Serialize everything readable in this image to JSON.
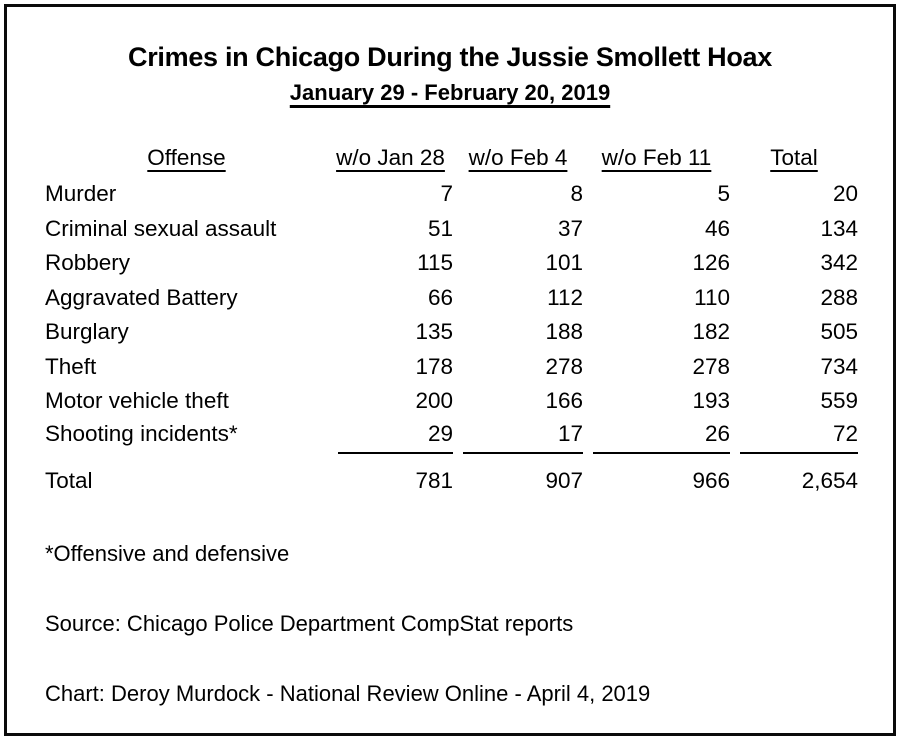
{
  "title": "Crimes in Chicago During the Jussie Smollett Hoax",
  "subtitle": "January 29 - February 20, 2019",
  "table": {
    "headers": [
      "Offense",
      "w/o Jan 28",
      "w/o Feb 4",
      "w/o Feb 11",
      "Total"
    ],
    "rows": [
      {
        "offense": "Murder",
        "values": [
          "7",
          "8",
          "5",
          "20"
        ]
      },
      {
        "offense": "Criminal sexual assault",
        "values": [
          "51",
          "37",
          "46",
          "134"
        ]
      },
      {
        "offense": "Robbery",
        "values": [
          "115",
          "101",
          "126",
          "342"
        ]
      },
      {
        "offense": "Aggravated Battery",
        "values": [
          "66",
          "112",
          "110",
          "288"
        ]
      },
      {
        "offense": "Burglary",
        "values": [
          "135",
          "188",
          "182",
          "505"
        ]
      },
      {
        "offense": "Theft",
        "values": [
          "178",
          "278",
          "278",
          "734"
        ]
      },
      {
        "offense": "Motor vehicle theft",
        "values": [
          "200",
          "166",
          "193",
          "559"
        ]
      },
      {
        "offense": "Shooting incidents*",
        "values": [
          "29",
          "17",
          "26",
          "72"
        ]
      }
    ],
    "total_row": {
      "label": "Total",
      "values": [
        "781",
        "907",
        "966",
        "2,654"
      ]
    }
  },
  "footnote": "*Offensive and defensive",
  "source": "Source: Chicago Police Department CompStat reports",
  "credit": "Chart: Deroy Murdock - National Review Online - April 4, 2019",
  "colors": {
    "text": "#000000",
    "border": "#0a0a0a",
    "background": "#ffffff"
  },
  "chart_data": {
    "type": "table",
    "title": "Crimes in Chicago During the Jussie Smollett Hoax",
    "subtitle": "January 29 - February 20, 2019",
    "categories": [
      "Murder",
      "Criminal sexual assault",
      "Robbery",
      "Aggravated Battery",
      "Burglary",
      "Theft",
      "Motor vehicle theft",
      "Shooting incidents*"
    ],
    "series": [
      {
        "name": "w/o Jan 28",
        "values": [
          7,
          51,
          115,
          66,
          135,
          178,
          200,
          29
        ]
      },
      {
        "name": "w/o Feb 4",
        "values": [
          8,
          37,
          101,
          112,
          188,
          278,
          166,
          17
        ]
      },
      {
        "name": "w/o Feb 11",
        "values": [
          5,
          46,
          126,
          110,
          182,
          278,
          193,
          26
        ]
      }
    ],
    "row_totals": [
      20,
      134,
      342,
      288,
      505,
      734,
      559,
      72
    ],
    "column_totals": [
      781,
      907,
      966
    ],
    "grand_total": 2654,
    "footnote": "*Offensive and defensive",
    "source": "Source: Chicago Police Department CompStat reports",
    "credit": "Chart: Deroy Murdock - National Review Online - April 4, 2019",
    "layout_hints": {
      "grid": false,
      "legend": "none",
      "number_alignment": "right",
      "header_style": "underlined"
    }
  }
}
